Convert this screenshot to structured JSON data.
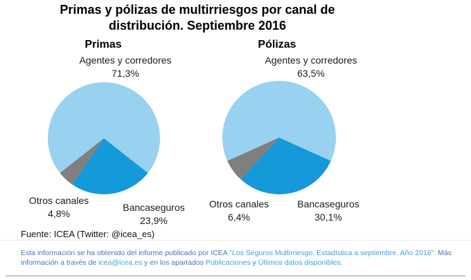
{
  "accent_colors": {
    "pie_light_blue": "#99d1f1",
    "pie_dark_blue": "#1599d8",
    "pie_gray": "#7f7f7f",
    "footer_text_blue": "#4376b8",
    "footer_link_blue": "#3ba2dc"
  },
  "title": {
    "line1": "Primas y pólizas de multirriesgos por canal de",
    "line2": "distribución. Septiembre 2016"
  },
  "source": "Fuente: ICEA (Twitter:  @icea_es)",
  "chart_data": [
    {
      "type": "pie",
      "title": "Primas",
      "labels": [
        "Agentes y corredores",
        "Bancaseguros",
        "Otros canales"
      ],
      "values": [
        71.3,
        23.9,
        4.8
      ],
      "value_labels": [
        "71,3%",
        "23,9%",
        "4,8%"
      ],
      "colors": [
        "#99d1f1",
        "#1599d8",
        "#7f7f7f"
      ],
      "layout_hint": "first slice centered at 12 o'clock, slices clockwise, labels outside, no legend"
    },
    {
      "type": "pie",
      "title": "Pólizas",
      "labels": [
        "Agentes y corredores",
        "Bancaseguros",
        "Otros canales"
      ],
      "values": [
        63.5,
        30.1,
        6.4
      ],
      "value_labels": [
        "63,5%",
        "30,1%",
        "6,4%"
      ],
      "colors": [
        "#99d1f1",
        "#1599d8",
        "#7f7f7f"
      ],
      "layout_hint": "first slice centered at 12 o'clock, slices clockwise, labels outside, no legend"
    }
  ],
  "footer": {
    "lines": [
      {
        "justified": true,
        "segments": [
          {
            "text": "Esta información se ha obtenido del informe publicado por ICEA ",
            "link": false
          },
          {
            "text": "\"Los Seguros Multirriesgo. Estadística a septiembre. Año 2016\"",
            "link": true
          },
          {
            "text": ". Más",
            "link": false
          }
        ]
      },
      {
        "justified": false,
        "segments": [
          {
            "text": "información a través de ",
            "link": false
          },
          {
            "text": "icea@icea.es",
            "link": true
          },
          {
            "text": " y en los apartados ",
            "link": false
          },
          {
            "text": "Publicaciones",
            "link": true
          },
          {
            "text": " y ",
            "link": false
          },
          {
            "text": "Últimos datos disponibles",
            "link": true
          },
          {
            "text": ".",
            "link": false
          }
        ]
      }
    ]
  }
}
